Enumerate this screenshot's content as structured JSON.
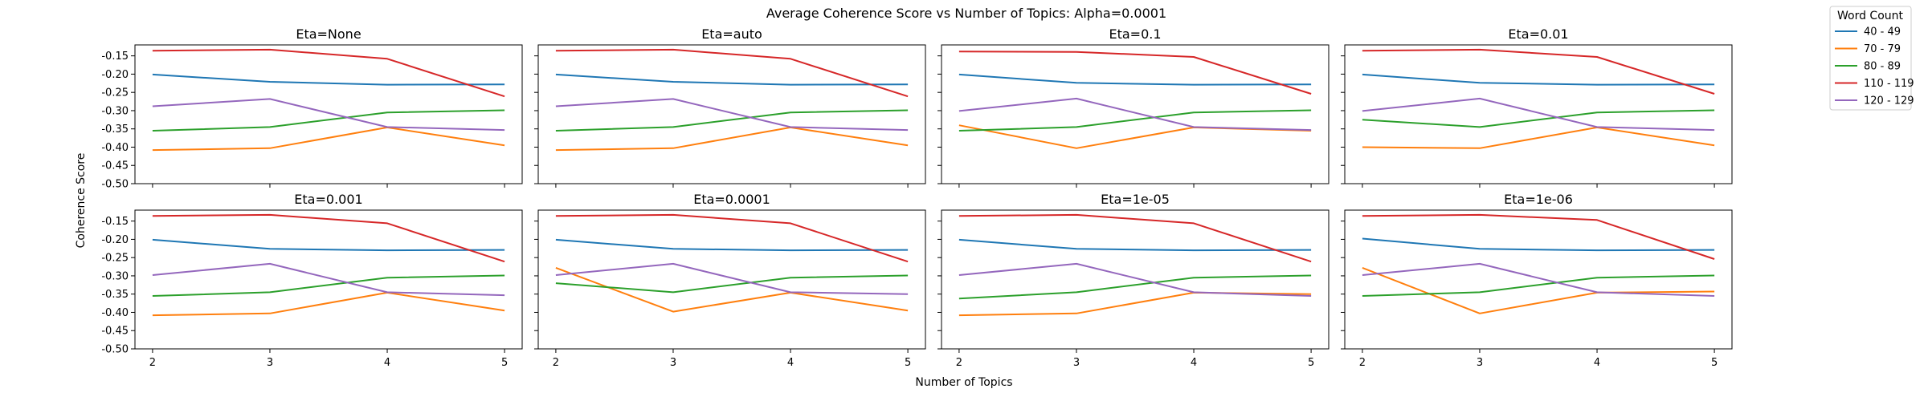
{
  "chart_data": {
    "type": "line",
    "title": "Average Coherence Score vs Number of Topics: Alpha=0.0001",
    "xlabel": "Number of Topics",
    "ylabel": "Coherence Score",
    "x": [
      2,
      3,
      4,
      5
    ],
    "xticks": [
      "2",
      "3",
      "4",
      "5"
    ],
    "ylim": [
      -0.5,
      -0.12
    ],
    "yticks": [
      "-0.15",
      "-0.20",
      "-0.25",
      "-0.30",
      "-0.35",
      "-0.40",
      "-0.45",
      "-0.50"
    ],
    "grid": false,
    "legend": {
      "title": "Word Count",
      "placement": "top-right outside"
    },
    "series_names": [
      "40 - 49",
      "70 - 79",
      "80 - 89",
      "110 - 119",
      "120 - 129"
    ],
    "colors": [
      "#1f77b4",
      "#ff7f0e",
      "#2ca02c",
      "#d62728",
      "#9467bd"
    ],
    "panels": [
      {
        "title": "Eta=None",
        "series": [
          {
            "name": "40 - 49",
            "values": [
              -0.201,
              -0.221,
              -0.229,
              -0.228
            ]
          },
          {
            "name": "70 - 79",
            "values": [
              -0.408,
              -0.403,
              -0.346,
              -0.395
            ]
          },
          {
            "name": "80 - 89",
            "values": [
              -0.355,
              -0.345,
              -0.305,
              -0.299
            ]
          },
          {
            "name": "110 - 119",
            "values": [
              -0.136,
              -0.133,
              -0.158,
              -0.261
            ]
          },
          {
            "name": "120 - 129",
            "values": [
              -0.288,
              -0.268,
              -0.345,
              -0.353
            ]
          }
        ]
      },
      {
        "title": "Eta=auto",
        "series": [
          {
            "name": "40 - 49",
            "values": [
              -0.201,
              -0.221,
              -0.229,
              -0.228
            ]
          },
          {
            "name": "70 - 79",
            "values": [
              -0.408,
              -0.403,
              -0.346,
              -0.395
            ]
          },
          {
            "name": "80 - 89",
            "values": [
              -0.355,
              -0.345,
              -0.305,
              -0.299
            ]
          },
          {
            "name": "110 - 119",
            "values": [
              -0.136,
              -0.133,
              -0.158,
              -0.261
            ]
          },
          {
            "name": "120 - 129",
            "values": [
              -0.288,
              -0.268,
              -0.345,
              -0.353
            ]
          }
        ]
      },
      {
        "title": "Eta=0.1",
        "series": [
          {
            "name": "40 - 49",
            "values": [
              -0.201,
              -0.224,
              -0.229,
              -0.228
            ]
          },
          {
            "name": "70 - 79",
            "values": [
              -0.34,
              -0.403,
              -0.346,
              -0.355
            ]
          },
          {
            "name": "80 - 89",
            "values": [
              -0.355,
              -0.345,
              -0.305,
              -0.299
            ]
          },
          {
            "name": "110 - 119",
            "values": [
              -0.138,
              -0.139,
              -0.153,
              -0.254
            ]
          },
          {
            "name": "120 - 129",
            "values": [
              -0.301,
              -0.267,
              -0.345,
              -0.353
            ]
          }
        ]
      },
      {
        "title": "Eta=0.01",
        "series": [
          {
            "name": "40 - 49",
            "values": [
              -0.201,
              -0.224,
              -0.229,
              -0.228
            ]
          },
          {
            "name": "70 - 79",
            "values": [
              -0.4,
              -0.403,
              -0.346,
              -0.395
            ]
          },
          {
            "name": "80 - 89",
            "values": [
              -0.325,
              -0.345,
              -0.305,
              -0.299
            ]
          },
          {
            "name": "110 - 119",
            "values": [
              -0.136,
              -0.133,
              -0.153,
              -0.254
            ]
          },
          {
            "name": "120 - 129",
            "values": [
              -0.301,
              -0.267,
              -0.345,
              -0.353
            ]
          }
        ]
      },
      {
        "title": "Eta=0.001",
        "series": [
          {
            "name": "40 - 49",
            "values": [
              -0.201,
              -0.226,
              -0.23,
              -0.229
            ]
          },
          {
            "name": "70 - 79",
            "values": [
              -0.408,
              -0.403,
              -0.346,
              -0.395
            ]
          },
          {
            "name": "80 - 89",
            "values": [
              -0.355,
              -0.345,
              -0.305,
              -0.299
            ]
          },
          {
            "name": "110 - 119",
            "values": [
              -0.136,
              -0.133,
              -0.156,
              -0.261
            ]
          },
          {
            "name": "120 - 129",
            "values": [
              -0.298,
              -0.267,
              -0.345,
              -0.353
            ]
          }
        ]
      },
      {
        "title": "Eta=0.0001",
        "series": [
          {
            "name": "40 - 49",
            "values": [
              -0.201,
              -0.226,
              -0.23,
              -0.229
            ]
          },
          {
            "name": "70 - 79",
            "values": [
              -0.278,
              -0.398,
              -0.346,
              -0.395
            ]
          },
          {
            "name": "80 - 89",
            "values": [
              -0.32,
              -0.345,
              -0.305,
              -0.299
            ]
          },
          {
            "name": "110 - 119",
            "values": [
              -0.136,
              -0.133,
              -0.156,
              -0.261
            ]
          },
          {
            "name": "120 - 129",
            "values": [
              -0.298,
              -0.267,
              -0.345,
              -0.35
            ]
          }
        ]
      },
      {
        "title": "Eta=1e-05",
        "series": [
          {
            "name": "40 - 49",
            "values": [
              -0.201,
              -0.226,
              -0.23,
              -0.229
            ]
          },
          {
            "name": "70 - 79",
            "values": [
              -0.408,
              -0.403,
              -0.346,
              -0.35
            ]
          },
          {
            "name": "80 - 89",
            "values": [
              -0.362,
              -0.345,
              -0.305,
              -0.299
            ]
          },
          {
            "name": "110 - 119",
            "values": [
              -0.136,
              -0.133,
              -0.156,
              -0.261
            ]
          },
          {
            "name": "120 - 129",
            "values": [
              -0.298,
              -0.267,
              -0.345,
              -0.355
            ]
          }
        ]
      },
      {
        "title": "Eta=1e-06",
        "series": [
          {
            "name": "40 - 49",
            "values": [
              -0.198,
              -0.226,
              -0.23,
              -0.229
            ]
          },
          {
            "name": "70 - 79",
            "values": [
              -0.278,
              -0.403,
              -0.346,
              -0.343
            ]
          },
          {
            "name": "80 - 89",
            "values": [
              -0.355,
              -0.345,
              -0.305,
              -0.299
            ]
          },
          {
            "name": "110 - 119",
            "values": [
              -0.136,
              -0.133,
              -0.147,
              -0.254
            ]
          },
          {
            "name": "120 - 129",
            "values": [
              -0.298,
              -0.267,
              -0.345,
              -0.355
            ]
          }
        ]
      }
    ]
  }
}
